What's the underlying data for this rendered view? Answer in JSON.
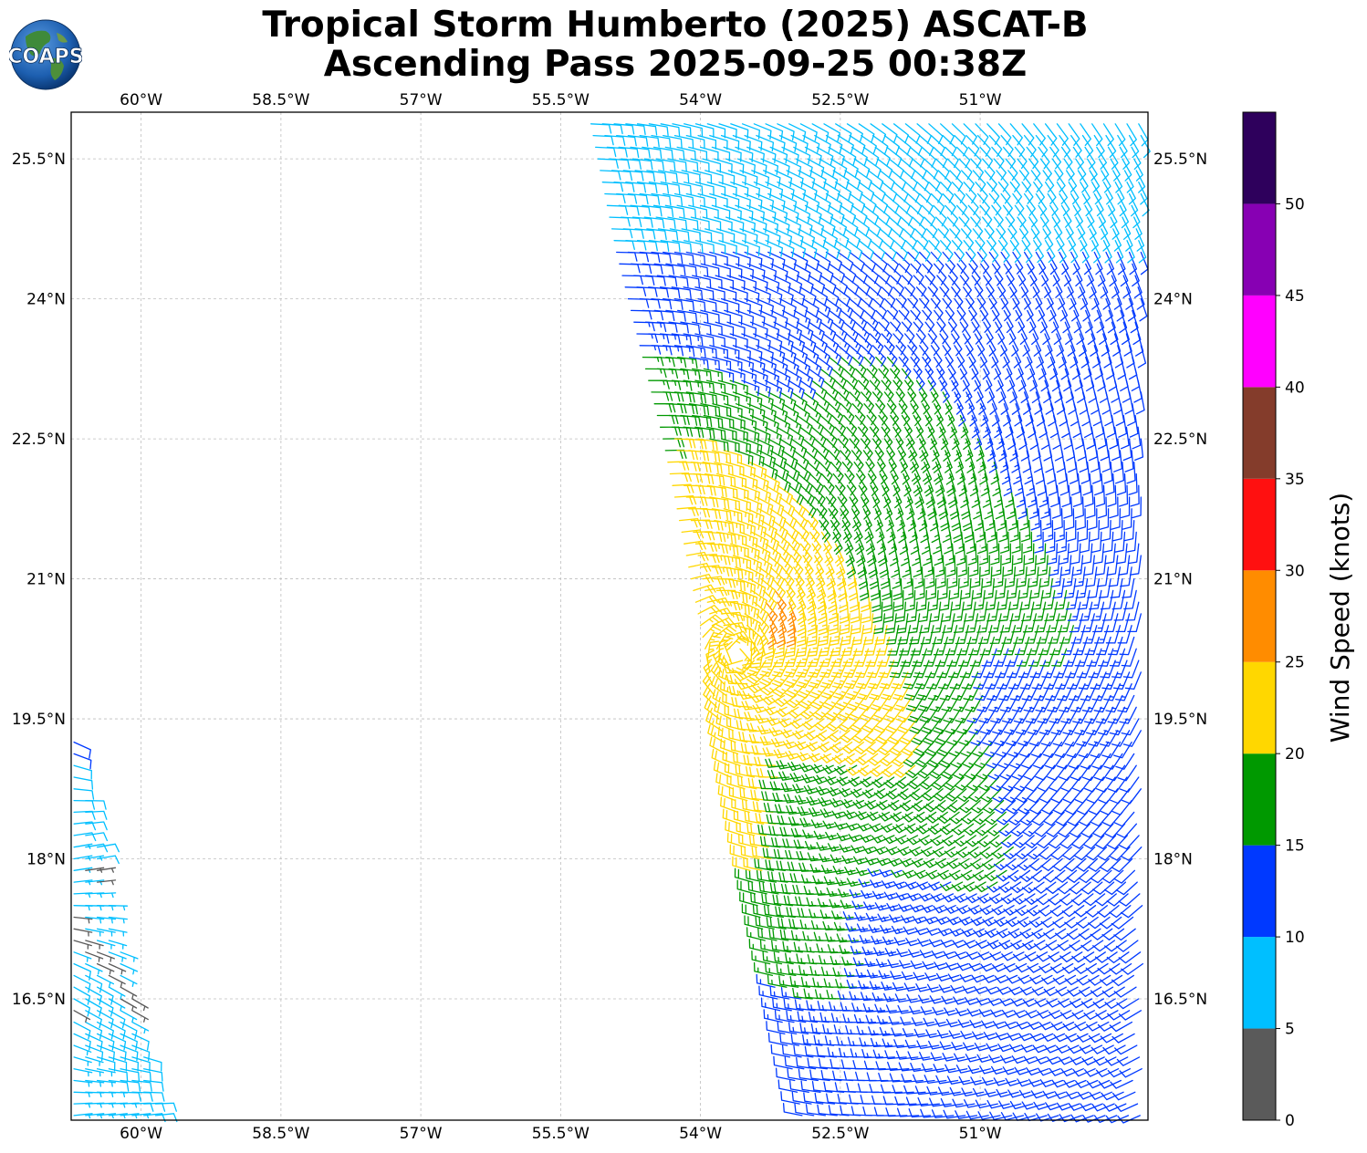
{
  "title": {
    "line1": "Tropical Storm Humberto (2025) ASCAT-B",
    "line2": "Ascending Pass 2025-09-25 00:38Z"
  },
  "logo": {
    "text": "COAPS",
    "icon": "globe-logo-icon"
  },
  "map": {
    "lon_range": [
      -60.75,
      -49.2
    ],
    "lat_range": [
      15.2,
      26.0
    ],
    "lon_ticks": [
      -60,
      -58.5,
      -57,
      -55.5,
      -54,
      -52.5,
      -51
    ],
    "lon_labels": [
      "60°W",
      "58.5°W",
      "57°W",
      "55.5°W",
      "54°W",
      "52.5°W",
      "51°W"
    ],
    "lat_ticks": [
      16.5,
      18,
      19.5,
      21,
      22.5,
      24,
      25.5
    ],
    "lat_labels": [
      "16.5°N",
      "18°N",
      "19.5°N",
      "21°N",
      "22.5°N",
      "24°N",
      "25.5°N"
    ],
    "grid": true,
    "colors": {
      "frame": "#000000",
      "grid": "#bdbdbd"
    }
  },
  "colorbar": {
    "label": "Wind Speed (knots)",
    "bounds": [
      0,
      5,
      10,
      15,
      20,
      25,
      30,
      35,
      40,
      45,
      50,
      55
    ],
    "tick_values": [
      0,
      5,
      10,
      15,
      20,
      25,
      30,
      35,
      40,
      45,
      50
    ],
    "tick_labels": [
      "0",
      "5",
      "10",
      "15",
      "20",
      "25",
      "30",
      "35",
      "40",
      "45",
      "50"
    ],
    "colors": [
      "#5a5a5a",
      "#00bfff",
      "#0039ff",
      "#009900",
      "#ffd700",
      "#ff8c00",
      "#ff1010",
      "#843c2b",
      "#ff00ff",
      "#8700b3",
      "#2e005c"
    ]
  },
  "swaths": {
    "main": {
      "description_kind": "wind-barb-field",
      "east_edge_lon": -49.2,
      "west_edge_by_lat": [
        [
          15.2,
          -52.9
        ],
        [
          18.5,
          -53.6
        ],
        [
          20.5,
          -54.0
        ],
        [
          22.5,
          -54.4
        ],
        [
          24.5,
          -54.9
        ],
        [
          26.0,
          -55.2
        ]
      ]
    },
    "west": {
      "description_kind": "wind-barb-field",
      "west_edge_lon": -60.75,
      "east_edge_by_lat": [
        [
          15.2,
          -59.8
        ],
        [
          17.0,
          -60.2
        ],
        [
          18.5,
          -60.55
        ],
        [
          19.5,
          -60.75
        ]
      ]
    }
  }
}
